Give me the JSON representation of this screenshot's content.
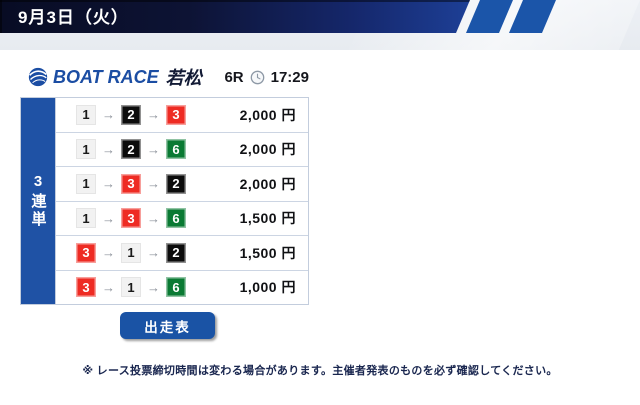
{
  "header": {
    "date": "9月3日（火）"
  },
  "race_info": {
    "brand": "BOAT RACE",
    "venue": "若松",
    "race_number": "6R",
    "deadline_time": "17:29"
  },
  "bets": {
    "type_label": "3連単",
    "arrow": "→",
    "rows": [
      {
        "first": 1,
        "second": 2,
        "third": 3,
        "amount": "2,000 円"
      },
      {
        "first": 1,
        "second": 2,
        "third": 6,
        "amount": "2,000 円"
      },
      {
        "first": 1,
        "second": 3,
        "third": 2,
        "amount": "2,000 円"
      },
      {
        "first": 1,
        "second": 3,
        "third": 6,
        "amount": "1,500 円"
      },
      {
        "first": 3,
        "second": 1,
        "third": 2,
        "amount": "1,500 円"
      },
      {
        "first": 3,
        "second": 1,
        "third": 6,
        "amount": "1,000 円"
      }
    ]
  },
  "actions": {
    "entry_table_label": "出走表"
  },
  "footnote": "※ レース投票締切時間は変わる場合があります。主催者発表のものを必ず確認してください。",
  "colors": {
    "accent_blue": "#1a53a5",
    "brand_blue": "#1b4da3",
    "header_gradient_start": "#080c24",
    "header_gradient_end": "#1d3f96",
    "stripe_blue": "#1b55a9",
    "bet_type_column": "#1f52a5",
    "boat_number_colors": {
      "1": {
        "bg": "#f2f2f2",
        "fg": "#1a1a1a"
      },
      "2": {
        "bg": "#0c0c0c",
        "fg": "#ffffff"
      },
      "3": {
        "bg": "#ee2b23",
        "fg": "#ffffff"
      },
      "6": {
        "bg": "#0a7a33",
        "fg": "#ffffff"
      }
    }
  }
}
